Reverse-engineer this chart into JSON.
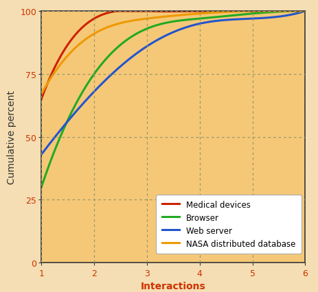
{
  "series": [
    {
      "label": "Medical devices",
      "color": "#cc2200",
      "x": [
        1,
        2,
        3,
        4,
        5,
        6
      ],
      "y": [
        65,
        97,
        100,
        100,
        100,
        100
      ]
    },
    {
      "label": "Browser",
      "color": "#22aa22",
      "x": [
        1,
        2,
        3,
        4,
        5,
        6
      ],
      "y": [
        30,
        75,
        93,
        97,
        99,
        100
      ]
    },
    {
      "label": "Web server",
      "color": "#2255cc",
      "x": [
        1,
        2,
        3,
        4,
        5,
        6
      ],
      "y": [
        43,
        68,
        86,
        95,
        97,
        100
      ]
    },
    {
      "label": "NASA distributed database",
      "color": "#ee9900",
      "x": [
        1,
        2,
        3,
        4,
        5,
        6
      ],
      "y": [
        67,
        91,
        97,
        99,
        100,
        100
      ]
    }
  ],
  "background_color": "#f5c878",
  "outer_background": "#f5deb3",
  "xlim": [
    1,
    6
  ],
  "ylim": [
    0,
    100
  ],
  "xticks": [
    1,
    2,
    3,
    4,
    5,
    6
  ],
  "yticks": [
    0,
    25,
    50,
    75,
    100
  ],
  "xlabel": "Interactions",
  "ylabel": "Cumulative percent",
  "grid_color": "#999966",
  "linewidth": 2.2
}
